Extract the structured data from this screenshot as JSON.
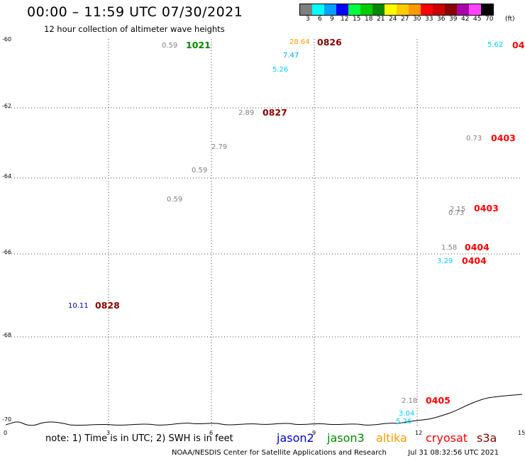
{
  "header": {
    "title": "00:00 – 11:59 UTC 07/30/2021",
    "subtitle": "12 hour collection of altimeter wave heights"
  },
  "color_scale": {
    "unit": "(ft)",
    "bins": [
      {
        "label": "3",
        "color": "#7f7f7f"
      },
      {
        "label": "6",
        "color": "#00ffff"
      },
      {
        "label": "9",
        "color": "#00a0ff"
      },
      {
        "label": "12",
        "color": "#0000ff"
      },
      {
        "label": "15",
        "color": "#00ff40"
      },
      {
        "label": "18",
        "color": "#00cc00"
      },
      {
        "label": "21",
        "color": "#008800"
      },
      {
        "label": "24",
        "color": "#ffff00"
      },
      {
        "label": "27",
        "color": "#ffcc00"
      },
      {
        "label": "30",
        "color": "#ff9900"
      },
      {
        "label": "33",
        "color": "#ff0000"
      },
      {
        "label": "36",
        "color": "#cc0000"
      },
      {
        "label": "39",
        "color": "#880000"
      },
      {
        "label": "42",
        "color": "#aa00aa"
      },
      {
        "label": "45",
        "color": "#ff44ff"
      },
      {
        "label": "70",
        "color": "#000000"
      }
    ]
  },
  "map": {
    "lon_range": [
      0,
      15
    ],
    "lat_range": [
      -70,
      -60
    ],
    "lon_ticks": [
      "0",
      "3",
      "6",
      "9",
      "12",
      "15"
    ],
    "lat_ticks": [
      "-60",
      "-62",
      "-64",
      "-66",
      "-68",
      "-70"
    ]
  },
  "observations": [
    {
      "text": "0.59",
      "color": "#808080"
    },
    {
      "text": "28.64",
      "color": "#ff9900"
    },
    {
      "text": "7.47",
      "color": "#00a0ff"
    },
    {
      "text": "5.26",
      "color": "#00ccff"
    },
    {
      "text": "5.62",
      "color": "#00ccff"
    },
    {
      "text": "2.89",
      "color": "#808080"
    },
    {
      "text": "0.73",
      "color": "#808080"
    },
    {
      "text": "2.79",
      "color": "#808080"
    },
    {
      "text": "0.59",
      "color": "#808080"
    },
    {
      "text": "0.59",
      "color": "#808080"
    },
    {
      "text": "2.15",
      "color": "#808080"
    },
    {
      "text": "0.73",
      "color": "#808080"
    },
    {
      "text": "1.58",
      "color": "#808080"
    },
    {
      "text": "3.29",
      "color": "#00ccff"
    },
    {
      "text": "10.11",
      "color": "#0000cc"
    },
    {
      "text": "2.18",
      "color": "#808080"
    },
    {
      "text": "3.04",
      "color": "#00ccff"
    },
    {
      "text": "5.26",
      "color": "#00ccff"
    }
  ],
  "time_labels": [
    {
      "text": "1021",
      "color": "#008800"
    },
    {
      "text": "0826",
      "color": "#880000"
    },
    {
      "text": "04",
      "color": "#ff0000"
    },
    {
      "text": "0827",
      "color": "#880000"
    },
    {
      "text": "0403",
      "color": "#ff0000"
    },
    {
      "text": "0403",
      "color": "#ff0000"
    },
    {
      "text": "0404",
      "color": "#ff0000"
    },
    {
      "text": "0404",
      "color": "#ff0000"
    },
    {
      "text": "0828",
      "color": "#880000"
    },
    {
      "text": "0405",
      "color": "#ff0000"
    }
  ],
  "footer": {
    "note": "note: 1) Time is in UTC; 2) SWH is in feet",
    "satellites": [
      {
        "name": "jason2",
        "color": "#0000cc"
      },
      {
        "name": "jason3",
        "color": "#008800"
      },
      {
        "name": "altika",
        "color": "#ff9900"
      },
      {
        "name": "cryosat",
        "color": "#ff0000"
      },
      {
        "name": "s3a",
        "color": "#880000"
      }
    ],
    "credit": "NOAA/NESDIS Center for Satellite Applications and Research",
    "timestamp": "Jul 31 08:32:56 UTC 2021"
  }
}
